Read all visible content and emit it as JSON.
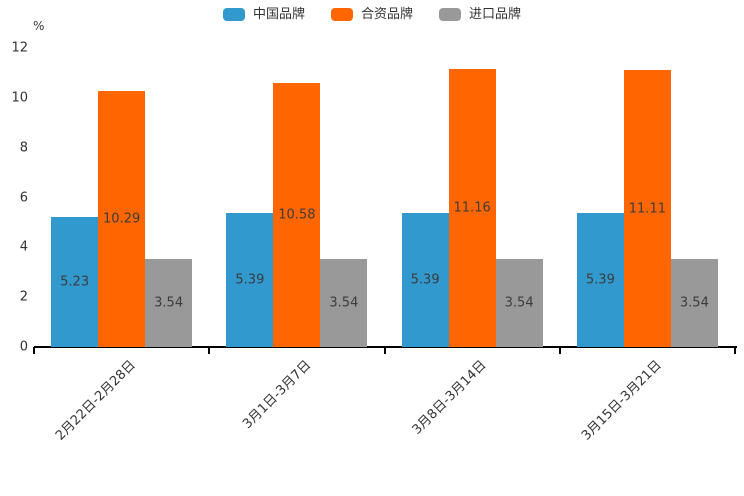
{
  "chart_data": {
    "type": "bar",
    "title": "",
    "xlabel": "",
    "ylabel": "%",
    "categories": [
      "2月22日-2月28日",
      "3月1日-3月7日",
      "3月8日-3月14日",
      "3月15日-3月21日"
    ],
    "series": [
      {
        "name": "中国品牌",
        "color": "#3199ce",
        "values": [
          5.23,
          5.39,
          5.39,
          5.39
        ]
      },
      {
        "name": "合资品牌",
        "color": "#ff6600",
        "values": [
          10.29,
          10.58,
          11.16,
          11.11
        ]
      },
      {
        "name": "进口品牌",
        "color": "#999999",
        "values": [
          3.54,
          3.54,
          3.54,
          3.54
        ]
      }
    ],
    "ylim": [
      0,
      12
    ],
    "yticks": [
      0,
      2,
      4,
      6,
      8,
      10,
      12
    ],
    "grid": false,
    "legend_position": "top",
    "value_labels": "inside-center",
    "xtick_rotation": 45
  }
}
